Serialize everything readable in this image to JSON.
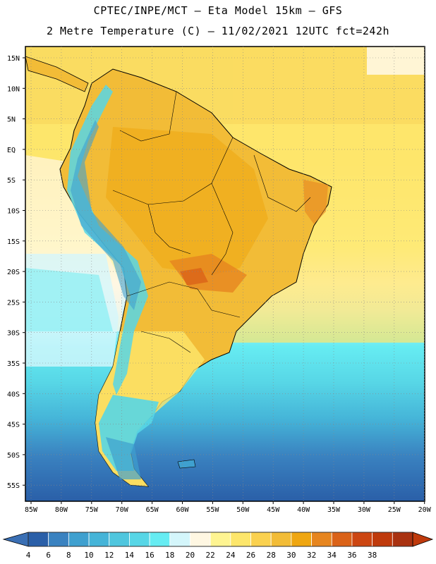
{
  "header": {
    "line1": "CPTEC/INPE/MCT –  Eta Model 15km – GFS",
    "line2": "2 Metre Temperature (C) – 11/02/2021 12UTC fct=242h"
  },
  "map": {
    "region": "South America",
    "lat_labels": [
      "15N",
      "10N",
      "5N",
      "EQ",
      "5S",
      "10S",
      "15S",
      "20S",
      "25S",
      "30S",
      "35S",
      "40S",
      "45S",
      "50S",
      "55S"
    ],
    "lon_labels": [
      "85W",
      "80W",
      "75W",
      "70W",
      "65W",
      "60W",
      "55W",
      "50W",
      "45W",
      "40W",
      "35W",
      "30W",
      "25W",
      "20W"
    ]
  },
  "colorbar": {
    "labels": [
      "4",
      "6",
      "8",
      "10",
      "12",
      "14",
      "16",
      "18",
      "20",
      "22",
      "24",
      "26",
      "28",
      "30",
      "32",
      "34",
      "36",
      "38"
    ],
    "colors": [
      "#2a5fa8",
      "#3a82c0",
      "#3fa0cf",
      "#45b4d8",
      "#4fc6de",
      "#57d6e6",
      "#66ecf2",
      "#d4f6fb",
      "#fff7e2",
      "#fef491",
      "#fde66b",
      "#fad14f",
      "#f2bc37",
      "#efa611",
      "#e6851f",
      "#da6218",
      "#cc4612",
      "#bf3a0c",
      "#a93211"
    ],
    "under_color": "#3a6fb4",
    "over_color": "#bf3a0c"
  }
}
